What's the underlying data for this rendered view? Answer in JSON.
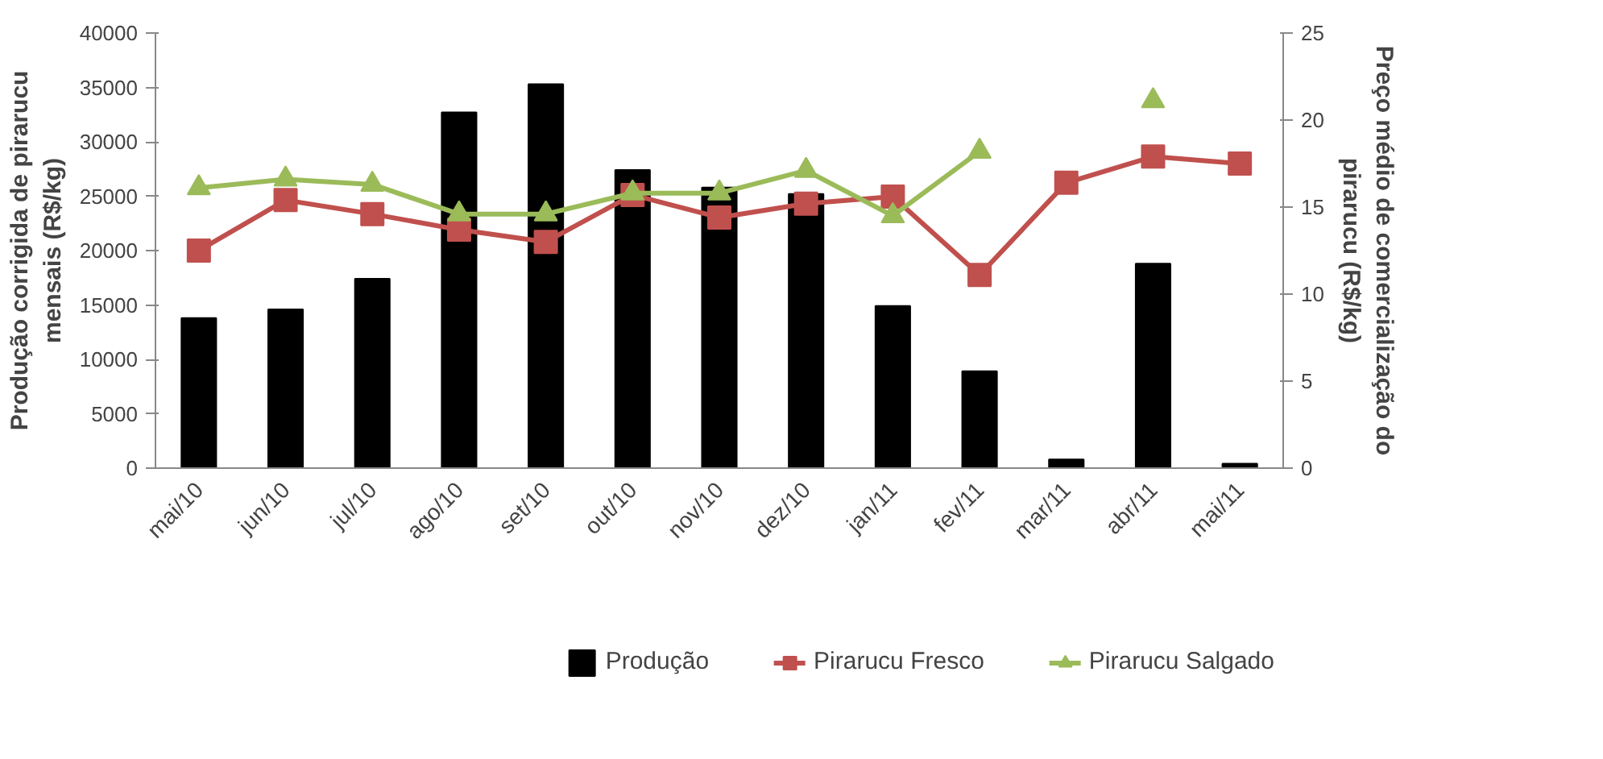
{
  "chart_data": {
    "type": "bar",
    "categories": [
      "mai/10",
      "jun/10",
      "jul/10",
      "ago/10",
      "set/10",
      "out/10",
      "nov/10",
      "dez/10",
      "jan/11",
      "fev/11",
      "mar/11",
      "abr/11",
      "mai/11"
    ],
    "series": [
      {
        "name": "Produção",
        "color": "#000000",
        "values": [
          13800,
          14600,
          17400,
          32700,
          35300,
          27400,
          25800,
          25200,
          14900,
          8900,
          800,
          18800,
          400
        ]
      },
      {
        "name": "Pirarucu Fresco",
        "color": "#c0504d",
        "type": "line",
        "axis": "y2",
        "marker": "square",
        "values": [
          12.5,
          15.4,
          14.6,
          13.7,
          13.0,
          15.7,
          14.4,
          15.2,
          15.6,
          11.1,
          16.4,
          17.9,
          17.5
        ]
      },
      {
        "name": "Pirarucu Salgado",
        "color": "#9bbb59",
        "type": "line",
        "axis": "y2",
        "marker": "triangle",
        "values": [
          16.1,
          16.6,
          16.3,
          14.6,
          14.6,
          15.8,
          15.8,
          17.1,
          14.5,
          18.2,
          null,
          21.1,
          null
        ]
      }
    ],
    "ylabel": "Produção corrigida de pirarucu\nmensais (R$/kg)",
    "y2label": "Preço médio de comercialização do\npirarucu (R$/kg)",
    "ylim": [
      0,
      40000
    ],
    "yticks": [
      0,
      5000,
      10000,
      15000,
      20000,
      25000,
      30000,
      35000,
      40000
    ],
    "y2lim": [
      0,
      25
    ],
    "y2ticks": [
      0,
      5,
      10,
      15,
      20,
      25
    ],
    "grid": false,
    "legend": "bottom"
  }
}
